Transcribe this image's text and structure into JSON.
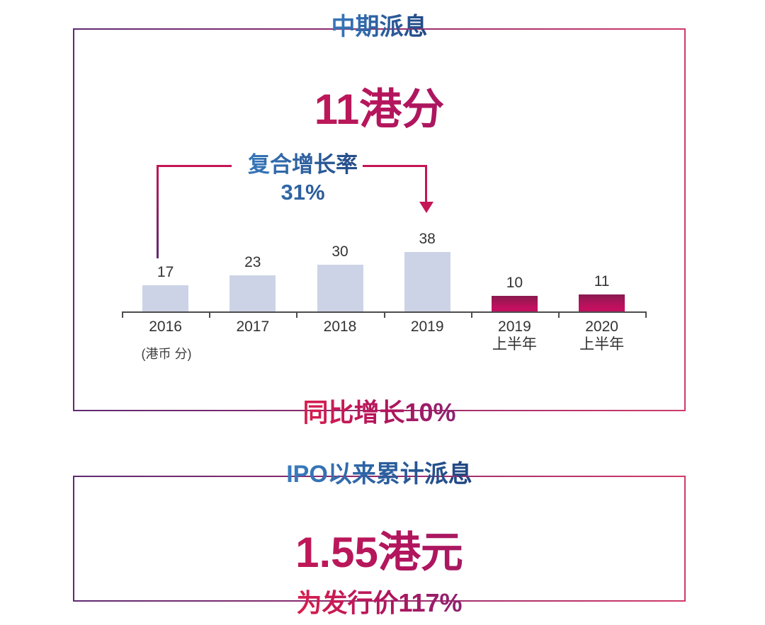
{
  "panel_interim": {
    "title": "中期派息",
    "headline": "11港分",
    "annotation": {
      "label": "复合增长率",
      "value": "31%"
    },
    "unit_note": "(港币 分)",
    "footer": "同比增长10%"
  },
  "panel_ipo": {
    "title": "IPO以来累计派息",
    "headline": "1.55港元",
    "footer": "为发行价117%"
  },
  "chart_data": {
    "type": "bar",
    "title": "中期派息",
    "unit": "港币 分",
    "categories": [
      "2016",
      "2017",
      "2018",
      "2019",
      "2019\n上半年",
      "2020\n上半年"
    ],
    "values": [
      17,
      23,
      30,
      38,
      10,
      11
    ],
    "bar_styles": [
      "past",
      "past",
      "past",
      "past",
      "current",
      "current"
    ],
    "value_labels": true,
    "grid": false,
    "ylim": [
      0,
      45
    ],
    "annotations": [
      {
        "text": "复合增长率 31%",
        "from_category": "2016",
        "to_category": "2019"
      },
      {
        "text": "同比增长10%",
        "refers_to": "2020 上半年 vs 2019 上半年"
      }
    ]
  },
  "colors": {
    "title_blue_light": "#3b82c6",
    "title_blue_dark": "#1e3f7a",
    "accent_red": "#e0204a",
    "accent_purple": "#832776",
    "bracket_crimson": "#c41556",
    "bar_past": "#ccd3e6",
    "bar_current_top": "#8a1a4f",
    "bar_current_bottom": "#c2105f",
    "axis": "#4d4d4f",
    "label_text": "#333333",
    "border_left": "#5f2a72",
    "border_right": "#cf3a69"
  }
}
